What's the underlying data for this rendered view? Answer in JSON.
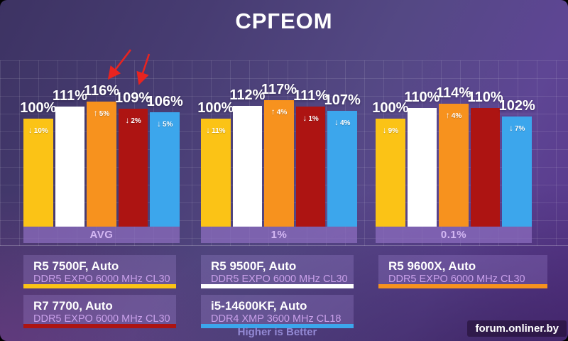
{
  "title": "СРГЕОМ",
  "chart_data": {
    "type": "bar",
    "title": "СРГЕОМ",
    "value_suffix": "%",
    "categories": [
      "AVG",
      "1%",
      "0.1%"
    ],
    "ylim": [
      0,
      120
    ],
    "grid": true,
    "legend_position": "bottom",
    "series": [
      {
        "name": "R5 7500F, Auto",
        "memory": "DDR5 EXPO 6000 MHz CL30",
        "color": "#fbc316",
        "values": [
          100,
          100,
          100
        ],
        "badges": [
          {
            "dir": "down",
            "text": "10%"
          },
          {
            "dir": "down",
            "text": "11%"
          },
          {
            "dir": "down",
            "text": "9%"
          }
        ]
      },
      {
        "name": "R5 9500F, Auto",
        "memory": "DDR5 EXPO 6000 MHz CL30",
        "color": "#ffffff",
        "values": [
          111,
          112,
          110
        ],
        "badges": [
          null,
          null,
          null
        ]
      },
      {
        "name": "R5 9600X, Auto",
        "memory": "DDR5 EXPO 6000 MHz CL30",
        "color": "#f7921e",
        "values": [
          116,
          117,
          114
        ],
        "badges": [
          {
            "dir": "up",
            "text": "5%"
          },
          {
            "dir": "up",
            "text": "4%"
          },
          {
            "dir": "up",
            "text": "4%"
          }
        ]
      },
      {
        "name": "R7 7700, Auto",
        "memory": "DDR5 EXPO 6000 MHz CL30",
        "color": "#ad1412",
        "values": [
          109,
          111,
          110
        ],
        "badges": [
          {
            "dir": "down",
            "text": "2%"
          },
          {
            "dir": "down",
            "text": "1%"
          },
          null
        ]
      },
      {
        "name": "i5-14600KF, Auto",
        "memory": "DDR4 XMP 3600 MHz CL18",
        "color": "#3ca6ec",
        "values": [
          106,
          107,
          102
        ],
        "badges": [
          {
            "dir": "down",
            "text": "5%"
          },
          {
            "dir": "down",
            "text": "4%"
          },
          {
            "dir": "down",
            "text": "7%"
          }
        ]
      }
    ],
    "annotations": [
      {
        "shape": "red-arrow",
        "target": "116% bar label, AVG group"
      },
      {
        "shape": "red-arrow",
        "target": "109% bar label, AVG group"
      }
    ]
  },
  "footer": {
    "note": "Higher is Better",
    "watermark": "forum.onliner.by"
  }
}
